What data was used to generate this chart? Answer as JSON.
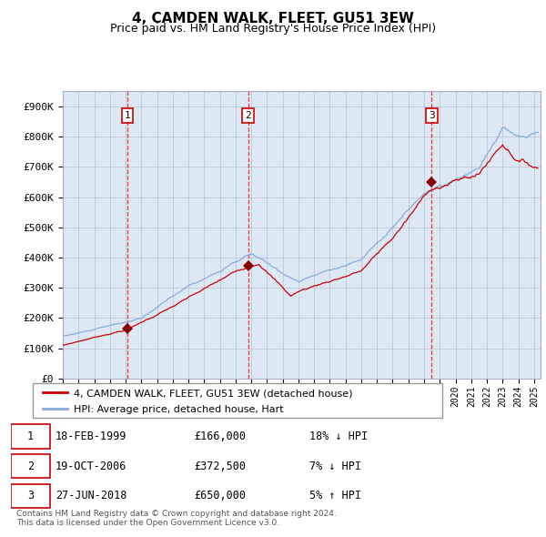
{
  "title": "4, CAMDEN WALK, FLEET, GU51 3EW",
  "subtitle": "Price paid vs. HM Land Registry's House Price Index (HPI)",
  "title_fontsize": 11,
  "subtitle_fontsize": 9,
  "bg_color": "#dce9f5",
  "red_line_color": "#cc0000",
  "blue_line_color": "#88aadd",
  "sale_marker_color": "#880000",
  "sale_dates": [
    "1999-02-18",
    "2006-10-19",
    "2018-06-27"
  ],
  "sale_prices": [
    166000,
    372500,
    650000
  ],
  "sale_labels": [
    "1",
    "2",
    "3"
  ],
  "legend_entries": [
    "4, CAMDEN WALK, FLEET, GU51 3EW (detached house)",
    "HPI: Average price, detached house, Hart"
  ],
  "table_rows": [
    [
      "1",
      "18-FEB-1999",
      "£166,000",
      "18% ↓ HPI"
    ],
    [
      "2",
      "19-OCT-2006",
      "£372,500",
      "7% ↓ HPI"
    ],
    [
      "3",
      "27-JUN-2018",
      "£650,000",
      "5% ↑ HPI"
    ]
  ],
  "footnote": "Contains HM Land Registry data © Crown copyright and database right 2024.\nThis data is licensed under the Open Government Licence v3.0.",
  "ylim": [
    0,
    950000
  ],
  "yticks": [
    0,
    100000,
    200000,
    300000,
    400000,
    500000,
    600000,
    700000,
    800000,
    900000
  ],
  "ytick_labels": [
    "£0",
    "£100K",
    "£200K",
    "£300K",
    "£400K",
    "£500K",
    "£600K",
    "£700K",
    "£800K",
    "£900K"
  ]
}
